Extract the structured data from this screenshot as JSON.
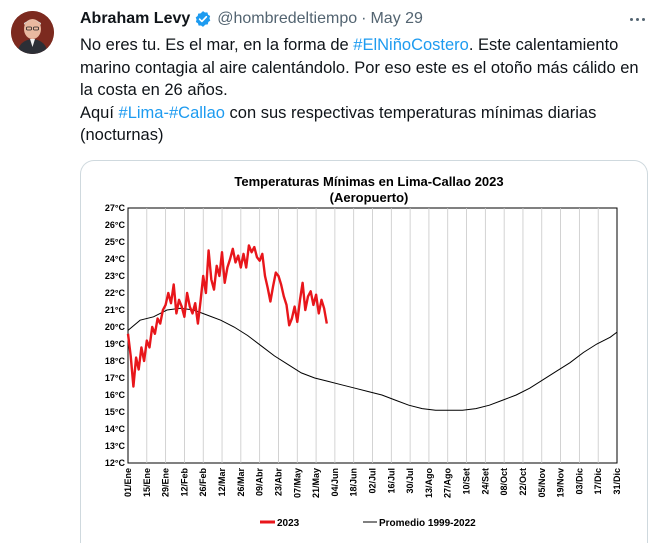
{
  "author": {
    "name": "Abraham Levy",
    "handle": "@hombredeltiempo",
    "separator": "·",
    "date": "May 29"
  },
  "tweet": {
    "p1_a": "No eres tu. Es el mar, en la forma de ",
    "p1_tag": "#ElNiñoCostero",
    "p1_b": ". Este calentamiento marino contagia al aire calentándolo. Por eso este es el otoño más cálido en la costa en 26 años.",
    "p2_a": "Aquí ",
    "p2_tag1": "#Lima",
    "p2_dash": "-",
    "p2_tag2": "#Callao",
    "p2_b": " con sus respectivas temperaturas mínimas diarias (nocturnas)"
  },
  "colors": {
    "series_2023": "#e8161b",
    "series_avg": "#000000",
    "link": "#1d9bf0",
    "verified": "#1d9bf0"
  },
  "chart_data": {
    "type": "line",
    "title": "Temperaturas Mínimas en Lima-Callao 2023",
    "subtitle": "(Aeropuerto)",
    "ylabel": "",
    "xlabel": "",
    "y_ticks": [
      "27°C",
      "26°C",
      "25°C",
      "24°C",
      "23°C",
      "22°C",
      "21°C",
      "20°C",
      "19°C",
      "18°C",
      "17°C",
      "16°C",
      "15°C",
      "14°C",
      "13°C",
      "12°C"
    ],
    "ylim": [
      12,
      27
    ],
    "x_ticks": [
      "01/Ene",
      "15/Ene",
      "29/Ene",
      "12/Feb",
      "26/Feb",
      "12/Mar",
      "26/Mar",
      "09/Abr",
      "23/Abr",
      "07/May",
      "21/May",
      "04/Jun",
      "18/Jun",
      "02/Jul",
      "16/Jul",
      "30/Jul",
      "13/Ago",
      "27/Ago",
      "10/Set",
      "24/Set",
      "08/Oct",
      "22/Oct",
      "05/Nov",
      "19/Nov",
      "03/Dic",
      "17/Dic",
      "31/Dic"
    ],
    "x_unit": "day of year",
    "series": [
      {
        "name": "2023",
        "x": [
          1,
          3,
          5,
          7,
          9,
          11,
          13,
          15,
          17,
          19,
          21,
          23,
          25,
          27,
          29,
          31,
          33,
          35,
          37,
          39,
          41,
          43,
          45,
          47,
          49,
          51,
          53,
          55,
          57,
          59,
          61,
          63,
          65,
          67,
          69,
          71,
          73,
          75,
          77,
          79,
          81,
          83,
          85,
          87,
          89,
          91,
          93,
          95,
          97,
          99,
          101,
          103,
          105,
          107,
          109,
          111,
          113,
          115,
          117,
          119,
          121,
          123,
          125,
          127,
          129,
          131,
          133,
          135,
          137,
          139,
          141,
          143,
          145,
          147,
          149
        ],
        "values": [
          19.6,
          18.3,
          16.5,
          18.2,
          17.5,
          18.8,
          18.0,
          19.2,
          18.8,
          20.0,
          19.6,
          20.5,
          20.2,
          21.0,
          21.3,
          22.0,
          21.4,
          22.5,
          20.8,
          21.6,
          21.2,
          20.6,
          22.0,
          21.2,
          20.8,
          21.4,
          20.2,
          21.5,
          23.0,
          22.0,
          24.5,
          22.8,
          22.2,
          23.6,
          23.0,
          24.4,
          22.6,
          23.5,
          24.0,
          24.6,
          23.8,
          24.2,
          23.5,
          24.3,
          23.5,
          24.8,
          24.4,
          24.7,
          24.1,
          23.9,
          24.3,
          23.0,
          22.3,
          21.5,
          22.4,
          23.2,
          23.0,
          22.5,
          21.8,
          21.3,
          20.1,
          20.5,
          21.2,
          20.3,
          21.6,
          22.6,
          21.0,
          21.8,
          22.1,
          21.3,
          21.9,
          20.8,
          21.6,
          21.1,
          20.2
        ]
      },
      {
        "name": "Promedio 1999-2022",
        "x": [
          1,
          10,
          20,
          30,
          40,
          50,
          60,
          70,
          80,
          90,
          100,
          110,
          120,
          130,
          140,
          150,
          160,
          170,
          180,
          190,
          200,
          210,
          220,
          230,
          240,
          250,
          260,
          270,
          280,
          290,
          300,
          310,
          320,
          330,
          340,
          350,
          360,
          365
        ],
        "values": [
          19.8,
          20.4,
          20.6,
          21.0,
          21.1,
          21.0,
          20.7,
          20.4,
          20.0,
          19.5,
          18.9,
          18.3,
          17.8,
          17.3,
          17.0,
          16.8,
          16.6,
          16.4,
          16.2,
          16.0,
          15.7,
          15.4,
          15.2,
          15.1,
          15.1,
          15.1,
          15.2,
          15.4,
          15.7,
          16.0,
          16.4,
          16.9,
          17.4,
          17.9,
          18.5,
          19.0,
          19.4,
          19.7
        ]
      }
    ],
    "legend": [
      "2023",
      "Promedio 1999-2022"
    ],
    "legend_position": "bottom"
  }
}
